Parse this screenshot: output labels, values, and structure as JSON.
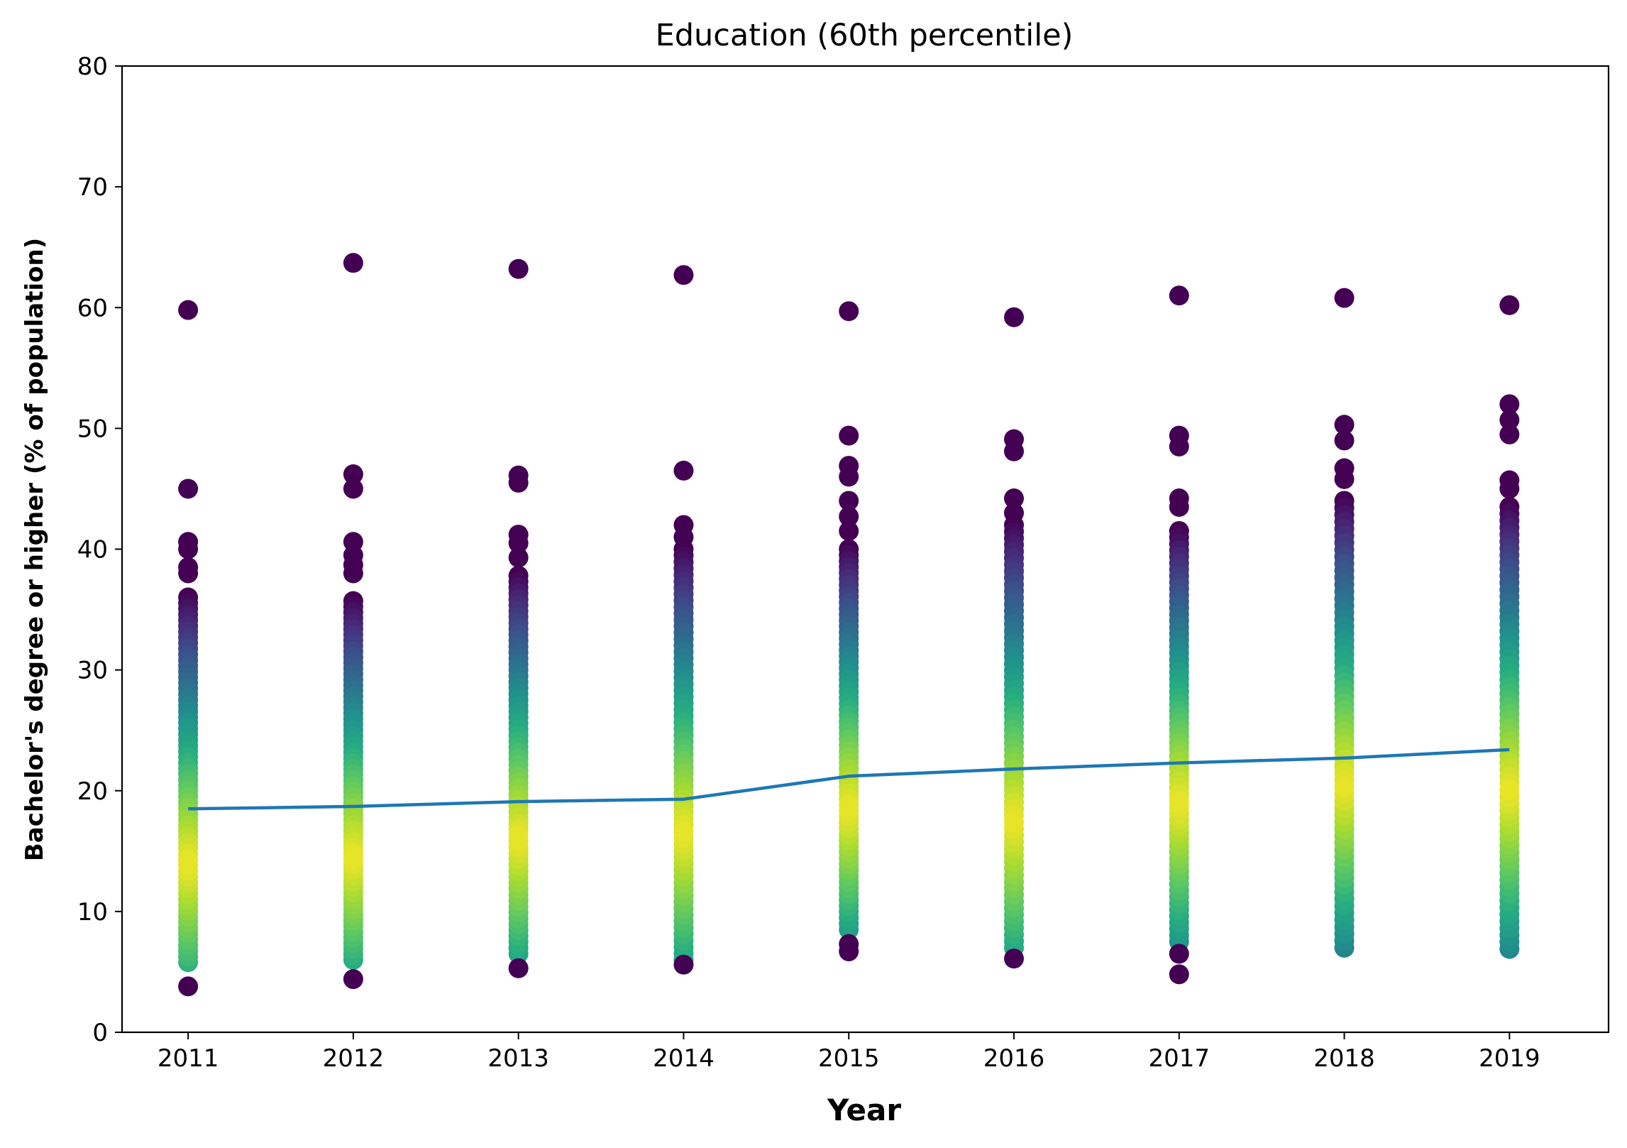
{
  "chart_data": {
    "type": "scatter",
    "title": "Education (60th percentile)",
    "xlabel": "Year",
    "ylabel": "Bachelor's degree or higher (% of population)",
    "xlim": [
      2010.6,
      2019.6
    ],
    "ylim": [
      0,
      80
    ],
    "x_ticks": [
      "2011",
      "2012",
      "2013",
      "2014",
      "2015",
      "2016",
      "2017",
      "2018",
      "2019"
    ],
    "y_ticks": [
      "0",
      "10",
      "20",
      "30",
      "40",
      "50",
      "60",
      "70",
      "80"
    ],
    "grid": false,
    "colormap": "viridis",
    "colors": {
      "line": "#1f77b4",
      "viridis_low": "#440154",
      "viridis_mid": "#21918c",
      "viridis_high": "#fde725"
    },
    "series": [
      {
        "type": "scatter",
        "colored_by": "density",
        "points": [
          {
            "x": 2011,
            "range": [
              5.8,
              36.0
            ],
            "density_peak": 14.0,
            "outliers": [
              3.8,
              38.0,
              38.5,
              40.0,
              40.6,
              45.0,
              59.8
            ]
          },
          {
            "x": 2012,
            "range": [
              6.0,
              35.7
            ],
            "density_peak": 14.5,
            "outliers": [
              4.4,
              38.0,
              38.7,
              39.5,
              40.6,
              45.0,
              46.2,
              63.7
            ]
          },
          {
            "x": 2013,
            "range": [
              6.5,
              37.8
            ],
            "density_peak": 16.0,
            "outliers": [
              5.3,
              39.3,
              40.5,
              41.2,
              45.5,
              46.1,
              63.2
            ]
          },
          {
            "x": 2014,
            "range": [
              6.0,
              40.0
            ],
            "density_peak": 16.5,
            "outliers": [
              5.6,
              41.0,
              42.0,
              46.5,
              62.7
            ]
          },
          {
            "x": 2015,
            "range": [
              8.5,
              40.0
            ],
            "density_peak": 18.5,
            "outliers": [
              6.7,
              7.3,
              41.5,
              42.7,
              44.0,
              46.0,
              46.9,
              49.4,
              59.7
            ]
          },
          {
            "x": 2016,
            "range": [
              7.0,
              42.0
            ],
            "density_peak": 17.5,
            "outliers": [
              6.1,
              43.0,
              44.2,
              48.1,
              49.1,
              59.2
            ]
          },
          {
            "x": 2017,
            "range": [
              7.5,
              41.5
            ],
            "density_peak": 19.0,
            "outliers": [
              4.8,
              6.5,
              43.5,
              44.2,
              48.5,
              49.4,
              61.0
            ]
          },
          {
            "x": 2018,
            "range": [
              7.0,
              44.0
            ],
            "density_peak": 20.5,
            "outliers": [
              45.8,
              46.7,
              49.0,
              50.3,
              60.8
            ]
          },
          {
            "x": 2019,
            "range": [
              6.9,
              43.5
            ],
            "density_peak": 20.0,
            "outliers": [
              45.0,
              45.7,
              49.5,
              50.7,
              52.0,
              60.2
            ]
          }
        ]
      },
      {
        "type": "line",
        "x": [
          2011,
          2012,
          2013,
          2014,
          2015,
          2016,
          2017,
          2018,
          2019
        ],
        "values": [
          18.5,
          18.7,
          19.1,
          19.3,
          21.2,
          21.8,
          22.3,
          22.7,
          23.4
        ]
      }
    ]
  }
}
